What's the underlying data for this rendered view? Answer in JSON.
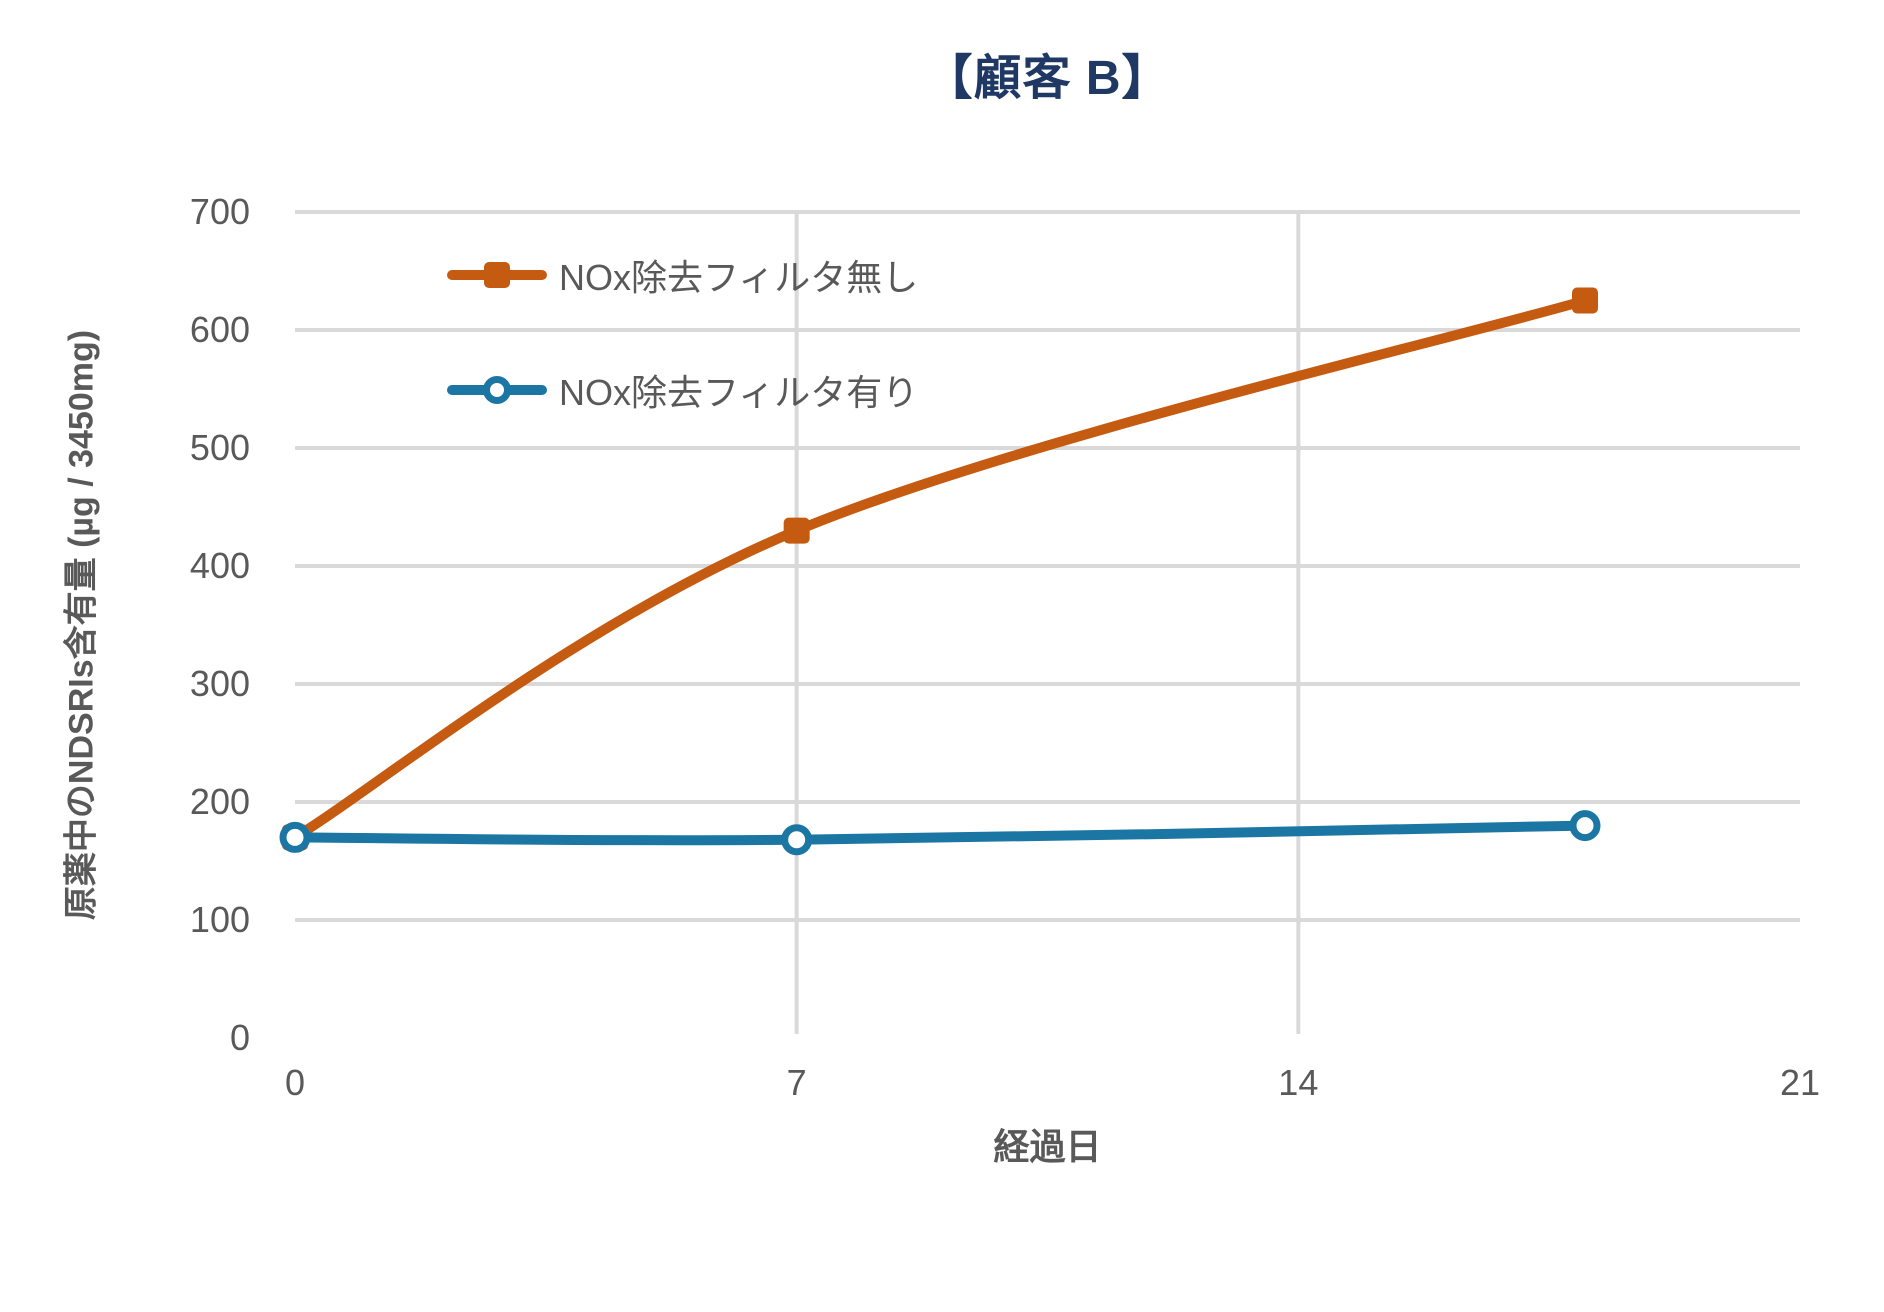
{
  "chart_data": {
    "type": "line",
    "title": "【顧客 B】",
    "xlabel": "経過日",
    "ylabel": "原薬中のNDSRIs含有量 (µg / 3450mg)",
    "xlim": [
      0,
      21
    ],
    "ylim": [
      0,
      700
    ],
    "x_ticks": [
      0,
      7,
      14,
      21
    ],
    "y_ticks": [
      0,
      100,
      200,
      300,
      400,
      500,
      600,
      700
    ],
    "grid": {
      "horizontal_at": [
        100,
        200,
        300,
        400,
        500,
        600,
        700
      ],
      "vertical_at": [
        7,
        14
      ]
    },
    "x": [
      0,
      7,
      18
    ],
    "series": [
      {
        "name": "NOx除去フィルタ無し",
        "color": "#C55A11",
        "marker": "filled-square",
        "smooth": true,
        "values": [
          170,
          430,
          625
        ]
      },
      {
        "name": "NOx除去フィルタ有り",
        "color": "#1B76A4",
        "marker": "open-circle",
        "smooth": true,
        "values": [
          170,
          168,
          180
        ]
      }
    ],
    "legend_position": "inside-top-left",
    "colors": {
      "title": "#1F3864",
      "axis_text": "#595959",
      "gridline": "#D9D9D9",
      "background": "#FFFFFF"
    }
  }
}
